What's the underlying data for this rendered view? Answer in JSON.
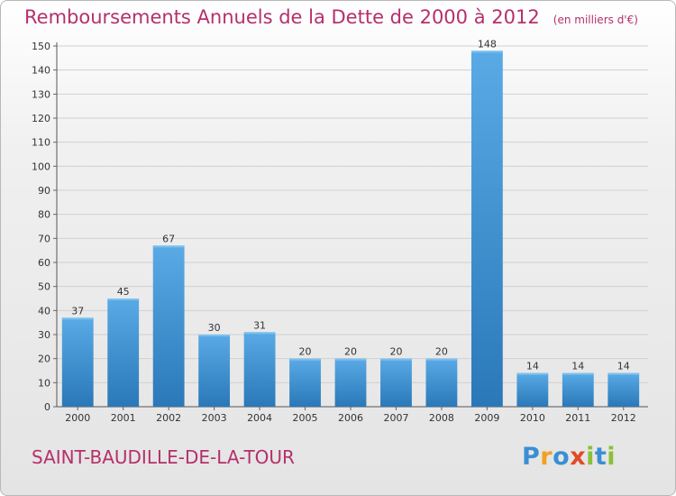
{
  "title": "Remboursements Annuels de la Dette de 2000 à 2012",
  "unit": "(en milliers d'€)",
  "commune": "SAINT-BAUDILLE-DE-LA-TOUR",
  "logo": {
    "text": "Proxiti",
    "letters": [
      {
        "char": "P",
        "color": "#3a8fd4"
      },
      {
        "char": "r",
        "color": "#f2a020"
      },
      {
        "char": "o",
        "color": "#3a8fd4"
      },
      {
        "char": "x",
        "color": "#e24a28"
      },
      {
        "char": "i",
        "color": "#8cbf3a"
      },
      {
        "char": "t",
        "color": "#3a8fd4"
      },
      {
        "char": "i",
        "color": "#8cbf3a"
      }
    ]
  },
  "colors": {
    "bar_top": "#5aaae6",
    "bar_bottom": "#2a78b8",
    "title": "#b5306b"
  },
  "chart_data": {
    "type": "bar",
    "categories": [
      "2000",
      "2001",
      "2002",
      "2003",
      "2004",
      "2005",
      "2006",
      "2007",
      "2008",
      "2009",
      "2010",
      "2011",
      "2012"
    ],
    "values": [
      37,
      45,
      67,
      30,
      31,
      20,
      20,
      20,
      20,
      148,
      14,
      14,
      14
    ],
    "ylim": [
      0,
      150
    ],
    "yticks": [
      0,
      10,
      20,
      30,
      40,
      50,
      60,
      70,
      80,
      90,
      100,
      110,
      120,
      130,
      140,
      150
    ],
    "grid": true,
    "data_labels": true
  }
}
